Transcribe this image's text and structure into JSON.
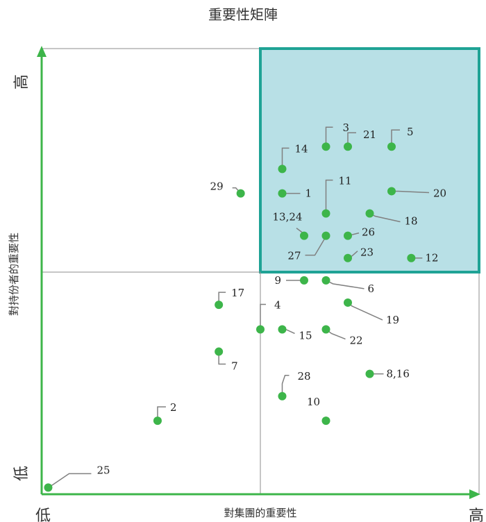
{
  "chart_data": {
    "type": "scatter",
    "title": "重要性矩陣",
    "xlabel": "對集團的重要性",
    "ylabel": "對持份者的重要性",
    "x_low_label": "低",
    "x_high_label": "高",
    "y_low_label": "低",
    "y_high_label": "高",
    "xlim": [
      0,
      20
    ],
    "ylim": [
      0,
      20
    ],
    "grid": "quadrants",
    "highlight_quadrant": "top-right",
    "colors": {
      "point": "#3db54a",
      "axis": "#3db54a",
      "highlight_fill": "#b8e0e6",
      "highlight_border": "#1fa395",
      "leader": "#808080",
      "grid": "#8c8c8c"
    },
    "points": [
      {
        "label": "1",
        "x": 11.0,
        "y": 13.5
      },
      {
        "label": "2",
        "x": 5.3,
        "y": 3.3
      },
      {
        "label": "3",
        "x": 13.0,
        "y": 15.6
      },
      {
        "label": "4",
        "x": 10.0,
        "y": 7.4
      },
      {
        "label": "5",
        "x": 16.0,
        "y": 15.6
      },
      {
        "label": "6",
        "x": 13.0,
        "y": 9.6
      },
      {
        "label": "7",
        "x": 8.1,
        "y": 6.4
      },
      {
        "label": "8,16",
        "x": 15.0,
        "y": 5.4
      },
      {
        "label": "9",
        "x": 12.0,
        "y": 9.6
      },
      {
        "label": "10",
        "x": 13.0,
        "y": 3.3
      },
      {
        "label": "11",
        "x": 13.0,
        "y": 12.6
      },
      {
        "label": "12",
        "x": 16.9,
        "y": 10.6
      },
      {
        "label": "13,24",
        "x": 12.0,
        "y": 11.6
      },
      {
        "label": "14",
        "x": 11.0,
        "y": 14.6
      },
      {
        "label": "15",
        "x": 11.0,
        "y": 7.4
      },
      {
        "label": "17",
        "x": 8.1,
        "y": 8.5
      },
      {
        "label": "18",
        "x": 15.0,
        "y": 12.6
      },
      {
        "label": "19",
        "x": 14.0,
        "y": 8.6
      },
      {
        "label": "20",
        "x": 16.0,
        "y": 13.6
      },
      {
        "label": "21",
        "x": 14.0,
        "y": 15.6
      },
      {
        "label": "22",
        "x": 13.0,
        "y": 7.4
      },
      {
        "label": "23",
        "x": 14.0,
        "y": 10.6
      },
      {
        "label": "25",
        "x": 0.3,
        "y": 0.3
      },
      {
        "label": "26",
        "x": 14.0,
        "y": 11.6
      },
      {
        "label": "27",
        "x": 13.0,
        "y": 11.6
      },
      {
        "label": "28",
        "x": 11.0,
        "y": 4.4
      },
      {
        "label": "29",
        "x": 9.1,
        "y": 13.5
      }
    ]
  }
}
